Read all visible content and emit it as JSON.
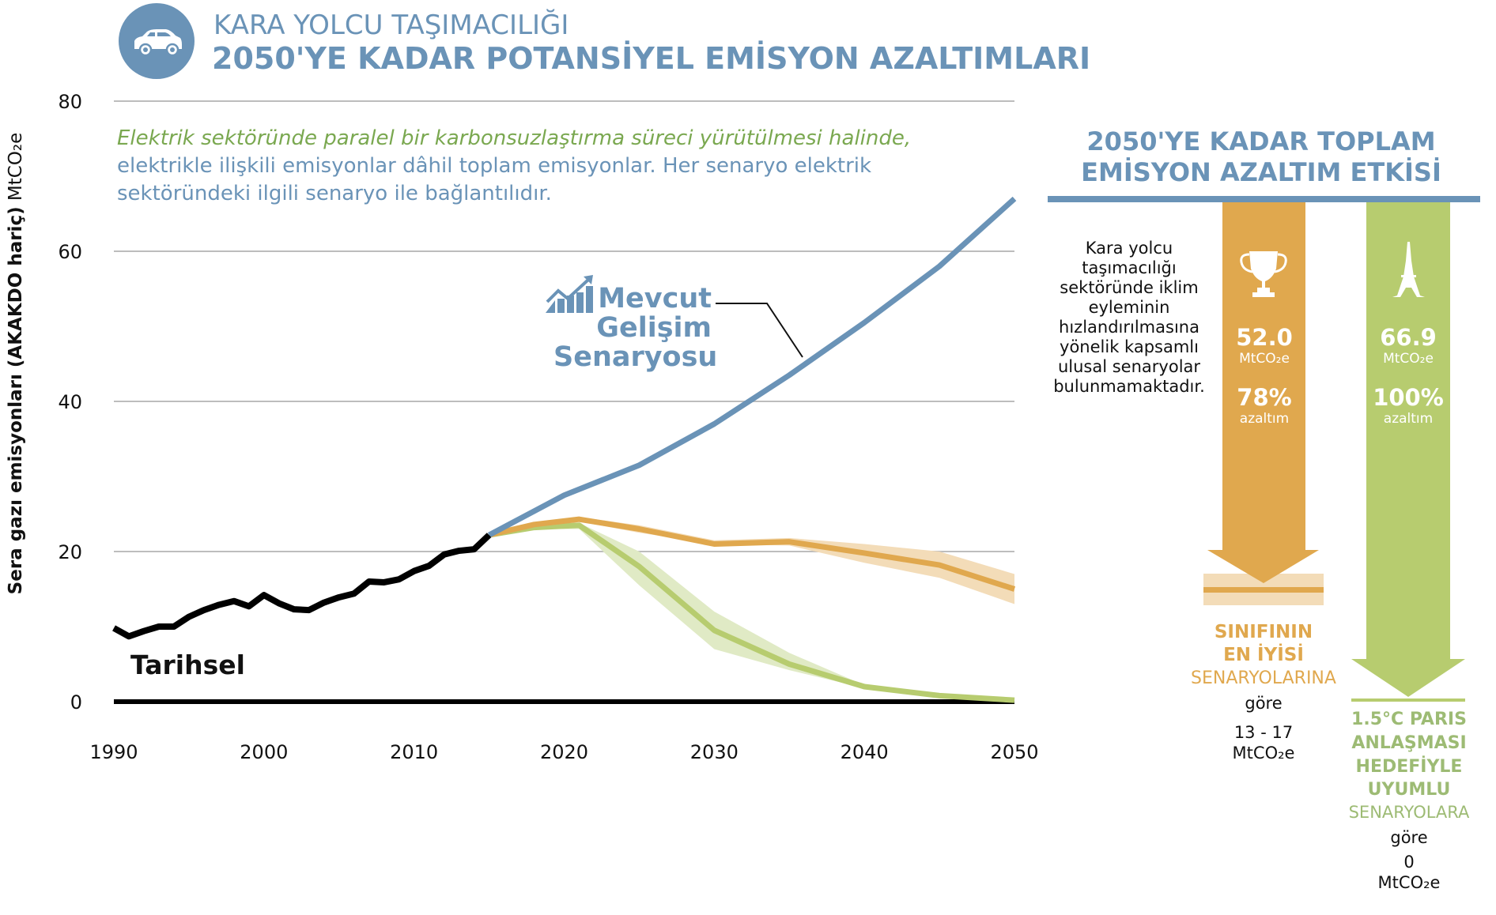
{
  "header": {
    "icon": "car-icon",
    "title_line1": "KARA YOLCU TAŞIMACILIĞI",
    "title_line2": "2050'YE KADAR POTANSİYEL EMİSYON AZALTIMLARI"
  },
  "note": {
    "green_text": "Elektrik sektöründe paralel bir karbonsuzlaştırma süreci yürütülmesi halinde,",
    "blue_text_line1": "elektrikle ilişkili emisyonlar dâhil toplam emisyonlar. Her senaryo elektrik",
    "blue_text_line2": "sektöründeki ilgili senaryo ile bağlantılıdır."
  },
  "labels": {
    "historical": "Tarihsel",
    "current_dev_line1": "Mevcut",
    "current_dev_line2": "Gelişim",
    "current_dev_line3": "Senaryosu",
    "current_dev_icon": "trend-chart-icon",
    "ylabel_bold": "Sera gazı emisyonları (AKAKDO hariç)",
    "ylabel_unit": "MtCO₂e"
  },
  "colors": {
    "blue": "#6a93b7",
    "orange": "#e0a84e",
    "orange_band": "#f3dcb8",
    "green": "#b7cc6f",
    "green_band": "#e0eac5",
    "historical": "#000000",
    "grid": "#bdbdbd"
  },
  "chart_data": {
    "type": "line",
    "title": "2050'YE KADAR POTANSİYEL EMİSYON AZALTIMLARI",
    "xlabel": "",
    "ylabel": "Sera gazı emisyonları (AKAKDO hariç) MtCO₂e",
    "xlim": [
      1990,
      2050
    ],
    "ylim": [
      0,
      80
    ],
    "xticks": [
      1990,
      2000,
      2010,
      2020,
      2030,
      2040,
      2050
    ],
    "yticks": [
      0,
      20,
      40,
      60,
      80
    ],
    "grid": true,
    "series": [
      {
        "name": "Tarihsel",
        "x": [
          1990,
          1991,
          1992,
          1993,
          1994,
          1995,
          1996,
          1997,
          1998,
          1999,
          2000,
          2001,
          2002,
          2003,
          2004,
          2005,
          2006,
          2007,
          2008,
          2009,
          2010,
          2011,
          2012,
          2013,
          2014,
          2015
        ],
        "values": [
          9.8,
          8.7,
          9.4,
          10.0,
          10.0,
          11.3,
          12.2,
          12.9,
          13.4,
          12.7,
          14.2,
          13.1,
          12.3,
          12.2,
          13.2,
          13.9,
          14.4,
          16.0,
          15.9,
          16.3,
          17.4,
          18.1,
          19.6,
          20.1,
          20.3,
          22.2
        ]
      },
      {
        "name": "Mevcut Gelişim Senaryosu",
        "x": [
          2015,
          2020,
          2025,
          2030,
          2035,
          2040,
          2045,
          2050
        ],
        "values": [
          22.2,
          27.5,
          31.5,
          37.0,
          43.5,
          50.5,
          58.0,
          67.0
        ]
      },
      {
        "name": "Sınıfının En İyisi Senaryoları",
        "x": [
          2015,
          2018,
          2021,
          2025,
          2030,
          2035,
          2040,
          2045,
          2050
        ],
        "values": [
          22.2,
          23.6,
          24.3,
          23.0,
          21.0,
          21.3,
          19.8,
          18.2,
          15.0
        ],
        "band_low": [
          22.2,
          23.4,
          24.0,
          22.5,
          21.0,
          20.8,
          18.5,
          16.5,
          13.0
        ],
        "band_high": [
          22.2,
          23.8,
          24.6,
          23.5,
          21.5,
          21.8,
          21.0,
          20.0,
          17.0
        ]
      },
      {
        "name": "1.5°C Paris Anlaşması Senaryoları",
        "x": [
          2015,
          2018,
          2021,
          2025,
          2030,
          2035,
          2040,
          2045,
          2050
        ],
        "values": [
          22.2,
          23.2,
          23.5,
          18.0,
          9.5,
          5.0,
          2.0,
          0.8,
          0.2
        ],
        "band_low": [
          22.2,
          23.0,
          23.0,
          15.5,
          7.0,
          4.2,
          1.8,
          0.6,
          0.1
        ],
        "band_high": [
          22.2,
          23.4,
          23.8,
          20.0,
          12.0,
          6.5,
          2.2,
          1.0,
          0.3
        ]
      }
    ]
  },
  "panel": {
    "title_line1": "2050'YE KADAR TOPLAM",
    "title_line2": "EMİSYON AZALTIM ETKİSİ",
    "no_scenario_text": [
      "Kara yolcu",
      "taşımacılığı",
      "sektöründe iklim",
      "eyleminin",
      "hızlandırılmasına",
      "yönelik kapsamlı",
      "ulusal senaryolar",
      "bulunmamaktadır."
    ],
    "best": {
      "icon": "trophy-icon",
      "value": "52.0",
      "unit": "MtCO₂e",
      "percent": "78%",
      "percent_label": "azaltım",
      "label_bold1": "SINIFININ",
      "label_bold2": "EN İYİSİ",
      "label_regular": "SENARYOLARINA",
      "according": "göre",
      "range": "13 - 17",
      "range_unit": "MtCO₂e"
    },
    "paris": {
      "icon": "eiffel-tower-icon",
      "value": "66.9",
      "unit": "MtCO₂e",
      "percent": "100%",
      "percent_label": "azaltım",
      "label_bold1": "1.5°C PARIS",
      "label_bold2": "ANLAŞMASI",
      "label_bold3": "HEDEFİYLE",
      "label_bold4": "UYUMLU",
      "label_regular": "SENARYOLARA",
      "according": "göre",
      "range": "0",
      "range_unit": "MtCO₂e"
    }
  }
}
